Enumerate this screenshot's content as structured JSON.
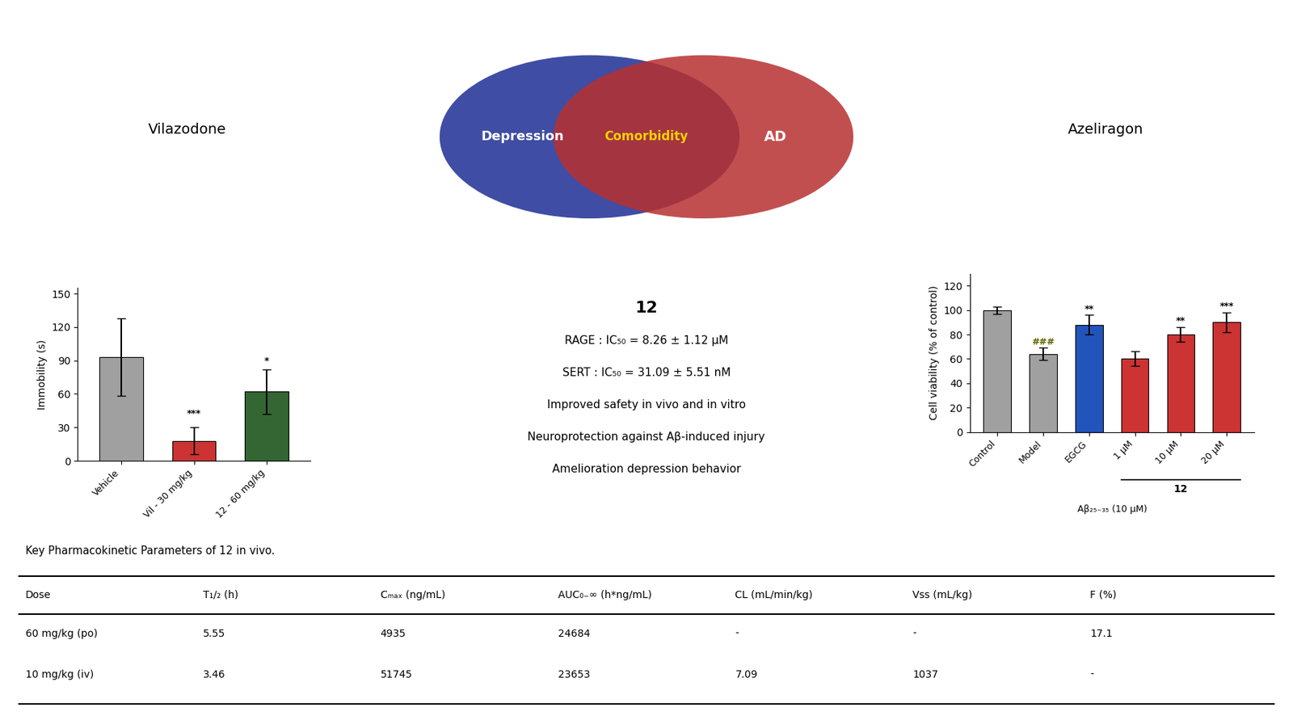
{
  "chart_data": [
    {
      "type": "text",
      "lines": [
        "Vilazodone"
      ]
    },
    {
      "type": "venn",
      "sets": [
        {
          "name": "Depression",
          "color": "#2a3a9a"
        },
        {
          "name": "AD",
          "color": "#b83030"
        }
      ],
      "intersection": "Comorbidity"
    },
    {
      "type": "text",
      "lines": [
        "Azeliragon"
      ]
    },
    {
      "type": "bar",
      "categories": [
        "Vehicle",
        "Vil - 30 mg/kg",
        "12 - 60 mg/kg"
      ],
      "values": [
        93,
        18,
        62
      ],
      "errors": [
        35,
        12,
        20
      ],
      "colors": [
        "#a0a0a0",
        "#cc3333",
        "#336633"
      ],
      "ylabel": "Immobility (s)",
      "ylim": [
        0,
        155
      ],
      "yticks": [
        0,
        30,
        60,
        90,
        120,
        150
      ],
      "annotations": [
        {
          "category": "Vil - 30 mg/kg",
          "text": "***",
          "y": 38
        },
        {
          "category": "12 - 60 mg/kg",
          "text": "*",
          "y": 85
        }
      ]
    },
    {
      "type": "text",
      "title": "12",
      "lines": [
        "RAGE : IC₅₀ = 8.26 ± 1.12 μM",
        "SERT : IC₅₀ = 31.09 ± 5.51 nM",
        "Improved safety in vivo and in vitro",
        "Neuroprotection against Aβ-induced injury",
        "Amelioration depression behavior"
      ]
    },
    {
      "type": "bar",
      "categories": [
        "Control",
        "Model",
        "EGCG",
        "1 μM",
        "10 μM",
        "20 μM"
      ],
      "values": [
        100,
        64,
        88,
        60,
        80,
        90
      ],
      "errors": [
        3,
        5,
        8,
        6,
        6,
        8
      ],
      "colors": [
        "#a0a0a0",
        "#a0a0a0",
        "#2255bb",
        "#cc3333",
        "#cc3333",
        "#cc3333"
      ],
      "ylabel": "Cell viability (% of control)",
      "ylim": [
        0,
        130
      ],
      "yticks": [
        0,
        20,
        40,
        60,
        80,
        100,
        120
      ],
      "annotations": [
        {
          "category": "Control",
          "text": "",
          "y": 103
        },
        {
          "category": "Model",
          "text": "###",
          "y": 70,
          "color": "#666600"
        },
        {
          "category": "EGCG",
          "text": "**",
          "y": 97
        },
        {
          "category": "10 μM",
          "text": "**",
          "y": 87
        },
        {
          "category": "20 μM",
          "text": "***",
          "y": 99
        }
      ],
      "groups": [
        {
          "label": "12",
          "categories": [
            "1 μM",
            "10 μM",
            "20 μM"
          ]
        }
      ],
      "xlabel": "Aβ₂₅₋₃₅ (10 μM)"
    },
    {
      "type": "table",
      "title": "Key Pharmacokinetic Parameters of 12 in vivo.",
      "headers": [
        "Dose",
        "T₁/₂ (h)",
        "Cₘₐₓ (ng/mL)",
        "AUC₀₋∞ (h*ng/mL)",
        "CL (mL/min/kg)",
        "Vss (mL/kg)",
        "F (%)"
      ],
      "rows": [
        [
          "60 mg/kg (po)",
          "5.55",
          "4935",
          "24684",
          "-",
          "-",
          "17.1"
        ],
        [
          "10 mg/kg (iv)",
          "3.46",
          "51745",
          "23653",
          "7.09",
          "1037",
          "-"
        ]
      ]
    }
  ]
}
